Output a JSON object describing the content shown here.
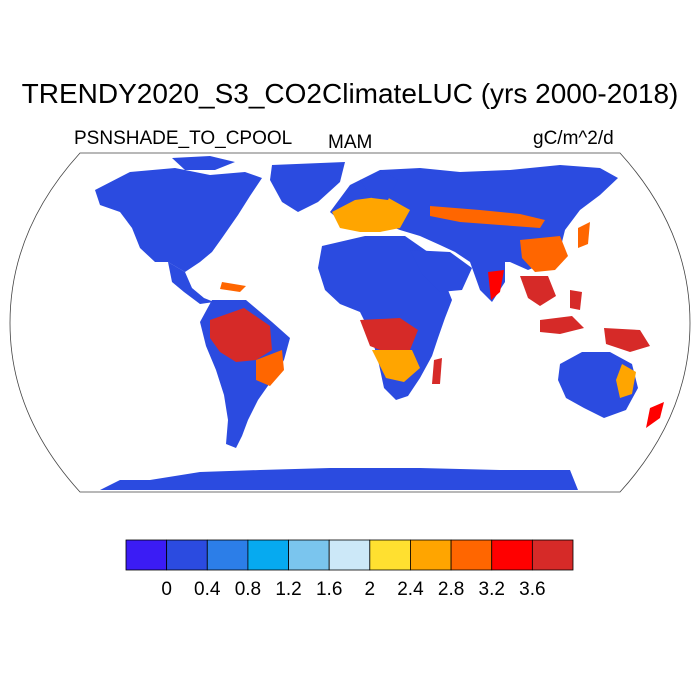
{
  "title": "TRENDY2020_S3_CO2ClimateLUC (yrs 2000-2018)",
  "left_label": "PSNSHADE_TO_CPOOL",
  "season_label": "MAM",
  "units_label": "gC/m^2/d",
  "colorbar": {
    "colors": [
      "#3b1cf5",
      "#2b4be0",
      "#2c7ee8",
      "#06aaf0",
      "#7ac5ee",
      "#cce8f8",
      "#ffe030",
      "#ffa500",
      "#ff6600",
      "#ff0000",
      "#d62a28"
    ],
    "ticks": [
      "0",
      "0.4",
      "0.8",
      "1.2",
      "1.6",
      "2",
      "2.4",
      "2.8",
      "3.2",
      "3.6"
    ]
  },
  "map": {
    "projection": "Robinson",
    "ocean_color": "#ffffff",
    "outline_color": "#333333"
  }
}
